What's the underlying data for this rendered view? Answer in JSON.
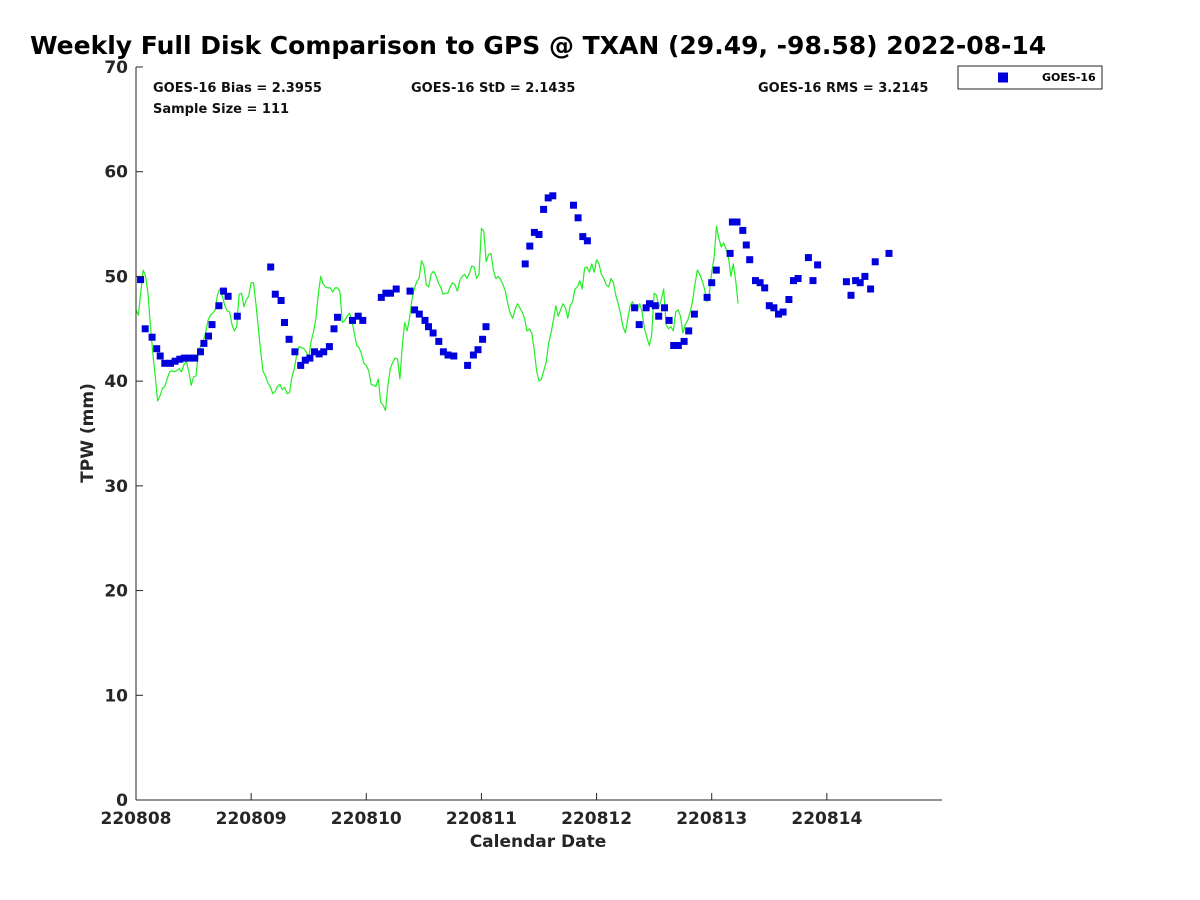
{
  "chart_data": {
    "type": "scatter",
    "title": "Weekly Full Disk Comparison to GPS @ TXAN (29.49, -98.58) 2022-08-14",
    "xlabel": "Calendar Date",
    "ylabel": "TPW (mm)",
    "xlim": [
      0,
      7
    ],
    "ylim": [
      0,
      70
    ],
    "x_ticks": [
      0,
      1,
      2,
      3,
      4,
      5,
      6
    ],
    "x_tick_labels": [
      "220808",
      "220809",
      "220810",
      "220811",
      "220812",
      "220813",
      "220814"
    ],
    "y_ticks": [
      0,
      10,
      20,
      30,
      40,
      50,
      60,
      70
    ],
    "y_tick_labels": [
      "0",
      "10",
      "20",
      "30",
      "40",
      "50",
      "60",
      "70"
    ],
    "grid": false,
    "legend_position": "top-right, outside",
    "stats": {
      "bias": "GOES-16 Bias = 2.3955",
      "std": "GOES-16 StD = 2.1435",
      "rms": "GOES-16 RMS = 3.2145",
      "sample": "Sample Size = 111"
    },
    "series": [
      {
        "name": "GOES-16",
        "kind": "markers",
        "marker": "square",
        "color": "#0000dd",
        "points": [
          [
            0.04,
            49.7
          ],
          [
            0.08,
            45.0
          ],
          [
            0.14,
            44.2
          ],
          [
            0.18,
            43.1
          ],
          [
            0.21,
            42.4
          ],
          [
            0.25,
            41.7
          ],
          [
            0.3,
            41.7
          ],
          [
            0.34,
            41.9
          ],
          [
            0.38,
            42.1
          ],
          [
            0.42,
            42.2
          ],
          [
            0.46,
            42.2
          ],
          [
            0.51,
            42.2
          ],
          [
            0.56,
            42.8
          ],
          [
            0.59,
            43.6
          ],
          [
            0.63,
            44.3
          ],
          [
            0.66,
            45.4
          ],
          [
            0.72,
            47.2
          ],
          [
            0.76,
            48.6
          ],
          [
            0.8,
            48.1
          ],
          [
            0.88,
            46.2
          ],
          [
            1.17,
            50.9
          ],
          [
            1.21,
            48.3
          ],
          [
            1.26,
            47.7
          ],
          [
            1.29,
            45.6
          ],
          [
            1.33,
            44.0
          ],
          [
            1.38,
            42.8
          ],
          [
            1.43,
            41.5
          ],
          [
            1.47,
            42.0
          ],
          [
            1.51,
            42.2
          ],
          [
            1.55,
            42.8
          ],
          [
            1.59,
            42.6
          ],
          [
            1.63,
            42.8
          ],
          [
            1.68,
            43.3
          ],
          [
            1.72,
            45.0
          ],
          [
            1.75,
            46.1
          ],
          [
            1.88,
            45.8
          ],
          [
            1.93,
            46.2
          ],
          [
            1.97,
            45.8
          ],
          [
            2.13,
            48.0
          ],
          [
            2.17,
            48.4
          ],
          [
            2.21,
            48.4
          ],
          [
            2.26,
            48.8
          ],
          [
            2.38,
            48.6
          ],
          [
            2.42,
            46.8
          ],
          [
            2.46,
            46.4
          ],
          [
            2.51,
            45.8
          ],
          [
            2.54,
            45.2
          ],
          [
            2.58,
            44.6
          ],
          [
            2.63,
            43.8
          ],
          [
            2.67,
            42.8
          ],
          [
            2.71,
            42.5
          ],
          [
            2.76,
            42.4
          ],
          [
            2.88,
            41.5
          ],
          [
            2.93,
            42.5
          ],
          [
            2.97,
            43.0
          ],
          [
            3.01,
            44.0
          ],
          [
            3.04,
            45.2
          ],
          [
            3.38,
            51.2
          ],
          [
            3.42,
            52.9
          ],
          [
            3.46,
            54.2
          ],
          [
            3.5,
            54.0
          ],
          [
            3.54,
            56.4
          ],
          [
            3.58,
            57.5
          ],
          [
            3.62,
            57.7
          ],
          [
            3.8,
            56.8
          ],
          [
            3.84,
            55.6
          ],
          [
            3.88,
            53.8
          ],
          [
            3.92,
            53.4
          ],
          [
            4.33,
            47.0
          ],
          [
            4.37,
            45.4
          ],
          [
            4.43,
            47.0
          ],
          [
            4.46,
            47.4
          ],
          [
            4.51,
            47.2
          ],
          [
            4.54,
            46.2
          ],
          [
            4.59,
            47.0
          ],
          [
            4.63,
            45.8
          ],
          [
            4.67,
            43.4
          ],
          [
            4.71,
            43.4
          ],
          [
            4.76,
            43.8
          ],
          [
            4.8,
            44.8
          ],
          [
            4.85,
            46.4
          ],
          [
            4.96,
            48.0
          ],
          [
            5.0,
            49.4
          ],
          [
            5.04,
            50.6
          ],
          [
            5.16,
            52.2
          ],
          [
            5.18,
            55.2
          ],
          [
            5.22,
            55.2
          ],
          [
            5.27,
            54.4
          ],
          [
            5.3,
            53.0
          ],
          [
            5.33,
            51.6
          ],
          [
            5.38,
            49.6
          ],
          [
            5.42,
            49.4
          ],
          [
            5.46,
            48.9
          ],
          [
            5.5,
            47.2
          ],
          [
            5.54,
            47.0
          ],
          [
            5.58,
            46.4
          ],
          [
            5.62,
            46.6
          ],
          [
            5.67,
            47.8
          ],
          [
            5.71,
            49.6
          ],
          [
            5.75,
            49.8
          ],
          [
            5.84,
            51.8
          ],
          [
            5.88,
            49.6
          ],
          [
            5.92,
            51.1
          ],
          [
            6.17,
            49.5
          ],
          [
            6.21,
            48.2
          ],
          [
            6.25,
            49.6
          ],
          [
            6.29,
            49.4
          ],
          [
            6.33,
            50.0
          ],
          [
            6.38,
            48.8
          ],
          [
            6.42,
            51.4
          ],
          [
            6.54,
            52.2
          ]
        ]
      },
      {
        "kind": "line",
        "color": "#22ee22",
        "x_start": 0,
        "x_step": 0.02083333,
        "values": [
          46.8,
          46.3,
          48.5,
          50.6,
          50.0,
          48.4,
          45.3,
          42.7,
          40.5,
          38.1,
          38.6,
          39.3,
          39.5,
          40.2,
          40.9,
          41.0,
          40.9,
          41.0,
          41.2,
          40.9,
          41.6,
          41.9,
          40.9,
          39.6,
          40.4,
          40.5,
          42.8,
          43.4,
          43.8,
          44.6,
          45.8,
          46.3,
          46.5,
          46.8,
          48.3,
          48.8,
          48.1,
          47.2,
          46.7,
          46.6,
          45.4,
          44.8,
          45.2,
          48.3,
          48.4,
          47.1,
          47.8,
          48.1,
          49.4,
          49.4,
          47.4,
          45.1,
          42.8,
          40.9,
          40.5,
          39.8,
          39.5,
          38.8,
          39.0,
          39.5,
          39.7,
          39.2,
          39.4,
          38.8,
          38.9,
          40.4,
          41.2,
          42.5,
          43.3,
          43.2,
          43.1,
          42.8,
          42.2,
          43.8,
          44.7,
          46.0,
          48.3,
          50.0,
          49.3,
          49.0,
          48.9,
          48.9,
          48.5,
          48.9,
          48.9,
          48.6,
          45.6,
          45.8,
          46.2,
          46.5,
          45.8,
          44.6,
          43.4,
          43.2,
          42.6,
          41.7,
          41.5,
          41.0,
          39.7,
          39.6,
          39.5,
          40.2,
          38.0,
          37.7,
          37.2,
          39.6,
          41.2,
          41.8,
          42.2,
          42.1,
          40.2,
          43.4,
          45.6,
          44.8,
          46.0,
          47.8,
          48.8,
          49.5,
          49.8,
          51.5,
          51.0,
          49.2,
          49.0,
          50.2,
          50.5,
          50.1,
          49.4,
          49.0,
          48.3,
          48.4,
          48.4,
          49.0,
          49.4,
          49.2,
          48.6,
          49.6,
          50.0,
          50.2,
          49.8,
          50.3,
          51.0,
          50.9,
          49.8,
          50.2,
          54.6,
          54.3,
          51.4,
          52.1,
          52.2,
          50.6,
          49.8,
          50.0,
          49.7,
          49.2,
          48.6,
          47.4,
          46.5,
          46.0,
          46.8,
          47.4,
          47.0,
          46.6,
          46.0,
          44.8,
          45.0,
          44.6,
          43.0,
          41.0,
          40.0,
          40.2,
          41.0,
          41.8,
          43.6,
          44.6,
          45.8,
          47.2,
          46.2,
          46.8,
          47.4,
          47.0,
          46.0,
          47.2,
          47.6,
          48.8,
          49.0,
          49.6,
          48.8,
          50.8,
          50.9,
          50.4,
          51.2,
          50.4,
          51.6,
          51.2,
          50.2,
          49.8,
          49.2,
          49.0,
          49.8,
          49.4,
          48.2,
          47.4,
          46.4,
          45.2,
          44.6,
          46.0,
          47.2,
          47.6,
          47.0,
          46.8,
          47.4,
          46.6,
          45.0,
          44.2,
          43.4,
          44.4,
          48.4,
          48.2,
          47.0,
          47.8,
          48.8,
          45.4,
          45.0,
          45.2,
          44.8,
          46.6,
          46.8,
          46.2,
          44.6,
          45.4,
          45.8,
          46.6,
          47.6,
          49.2,
          50.6,
          50.2,
          49.6,
          48.8,
          47.6,
          48.4,
          50.4,
          51.8,
          54.8,
          53.6,
          52.8,
          53.2,
          52.6,
          51.8,
          50.0,
          51.2,
          49.6,
          47.4
        ]
      }
    ]
  }
}
